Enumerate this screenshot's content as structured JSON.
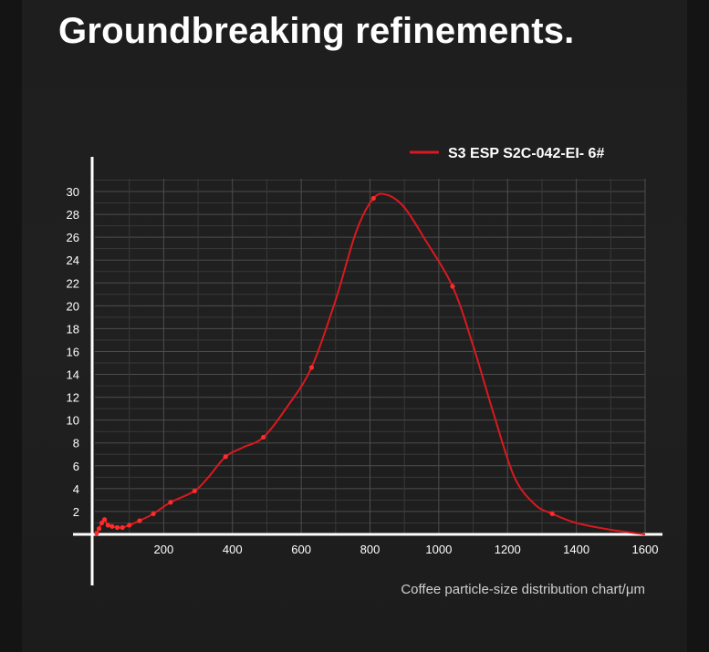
{
  "header": {
    "title": "Groundbreaking refinements."
  },
  "colors": {
    "background": "#1e1e1e",
    "series": "#d9191f",
    "grid": "#4a4a4a",
    "axis": "#ffffff",
    "text": "#ffffff"
  },
  "chart_data": {
    "type": "line",
    "title": "",
    "xlabel": "Coffee particle-size distribution chart/μm",
    "ylabel": "",
    "xlim": [
      0,
      1600
    ],
    "ylim": [
      0,
      30
    ],
    "x_ticks": [
      200,
      400,
      600,
      800,
      1000,
      1200,
      1400,
      1600
    ],
    "y_ticks": [
      2,
      4,
      6,
      8,
      10,
      12,
      14,
      16,
      18,
      20,
      22,
      24,
      26,
      28,
      30
    ],
    "grid": true,
    "legend_position": "top-right",
    "series": [
      {
        "name": "S3 ESP S2C-042-EI- 6#",
        "x": [
          5,
          12,
          20,
          28,
          38,
          50,
          65,
          80,
          100,
          130,
          170,
          220,
          290,
          380,
          490,
          630,
          810,
          1040,
          1330
        ],
        "y": [
          0.1,
          0.5,
          1.0,
          1.3,
          0.8,
          0.7,
          0.6,
          0.6,
          0.8,
          1.2,
          1.8,
          2.8,
          3.8,
          6.8,
          8.5,
          14.6,
          29.4,
          21.7,
          1.8
        ],
        "curve": {
          "x": [
            5,
            12,
            20,
            28,
            38,
            50,
            65,
            80,
            100,
            130,
            170,
            220,
            290,
            330,
            380,
            430,
            490,
            560,
            630,
            700,
            760,
            810,
            850,
            900,
            960,
            1040,
            1100,
            1160,
            1220,
            1280,
            1330,
            1400,
            1500,
            1600
          ],
          "y": [
            0.1,
            0.5,
            1.0,
            1.3,
            0.8,
            0.7,
            0.6,
            0.6,
            0.8,
            1.2,
            1.8,
            2.8,
            3.8,
            5.0,
            6.8,
            7.6,
            8.5,
            11.2,
            14.6,
            20.5,
            26.5,
            29.4,
            29.7,
            28.6,
            25.8,
            21.7,
            16.5,
            10.5,
            5.0,
            2.6,
            1.8,
            1.0,
            0.4,
            0.0
          ]
        },
        "color": "#d9191f"
      }
    ]
  }
}
